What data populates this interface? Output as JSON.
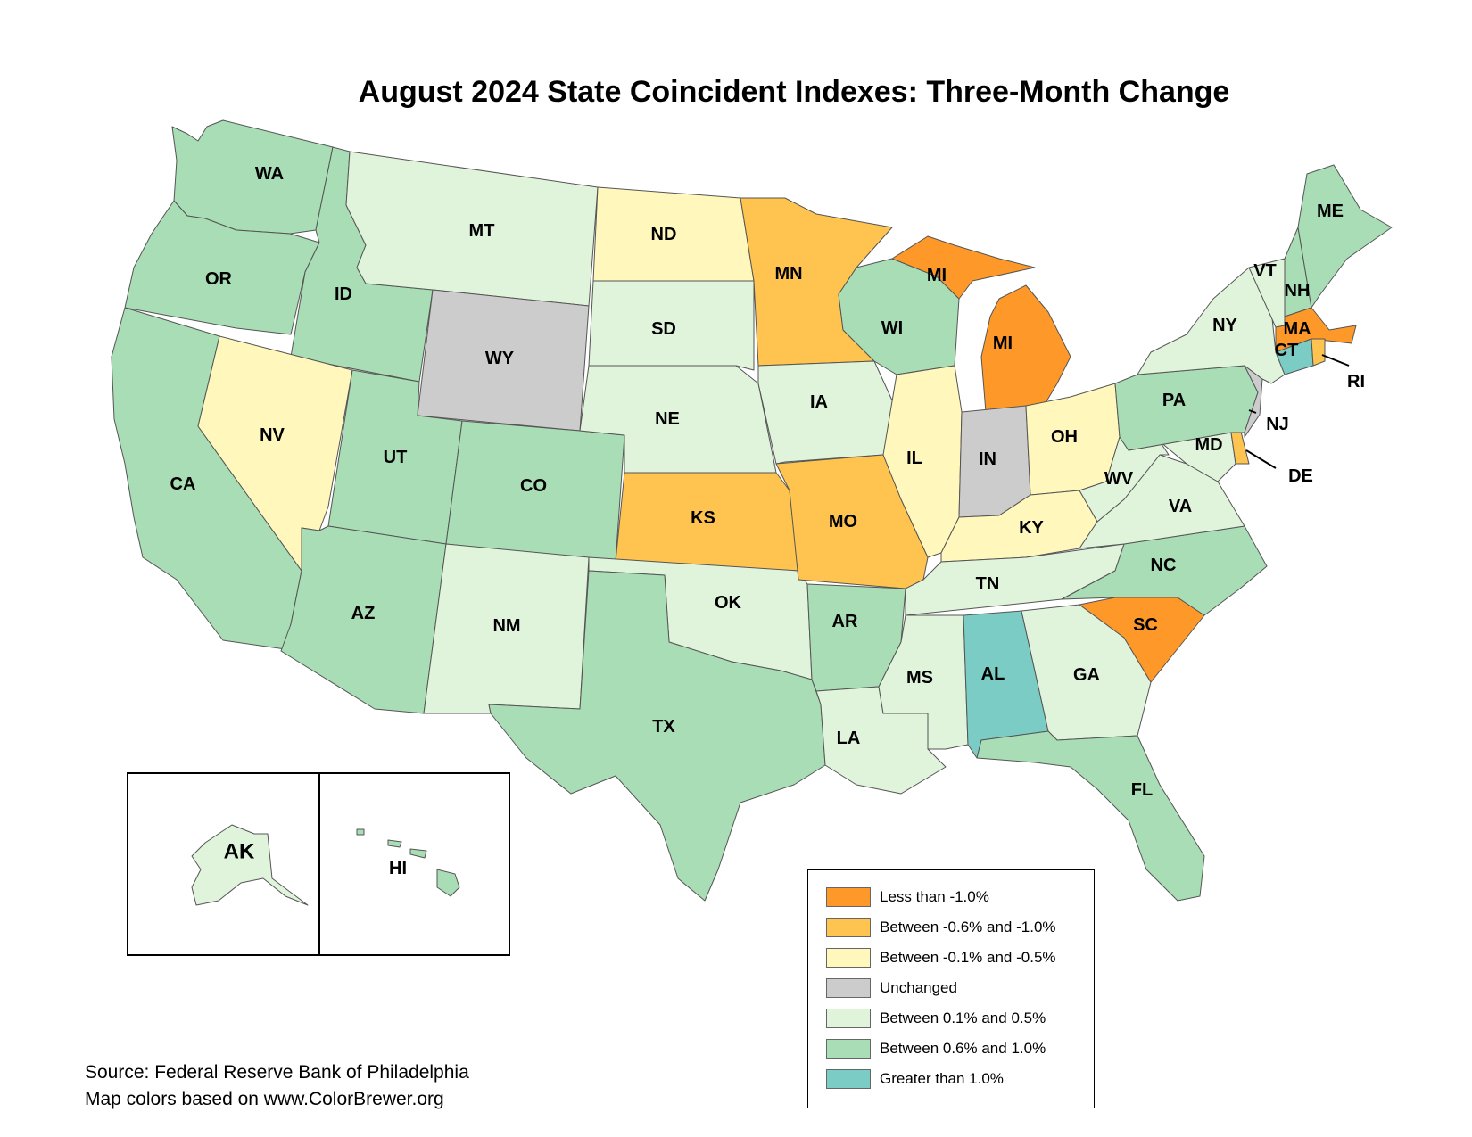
{
  "title": "August 2024 State Coincident Indexes: Three-Month Change",
  "colors": {
    "lt_neg1": "#fe9929",
    "neg06_neg10": "#fec44f",
    "neg01_neg05": "#fff7bc",
    "unchanged": "#cccccc",
    "pos01_pos05": "#e0f3db",
    "pos06_pos10": "#a8ddb5",
    "gt_pos1": "#7bccc4"
  },
  "legend": [
    {
      "key": "lt_neg1",
      "label": "Less than -1.0%"
    },
    {
      "key": "neg06_neg10",
      "label": "Between -0.6% and -1.0%"
    },
    {
      "key": "neg01_neg05",
      "label": "Between -0.1% and -0.5%"
    },
    {
      "key": "unchanged",
      "label": "Unchanged"
    },
    {
      "key": "pos01_pos05",
      "label": "Between 0.1% and 0.5%"
    },
    {
      "key": "pos06_pos10",
      "label": "Between 0.6% and 1.0%"
    },
    {
      "key": "gt_pos1",
      "label": "Greater than 1.0%"
    }
  ],
  "states": {
    "WA": "pos06_pos10",
    "OR": "pos06_pos10",
    "CA": "pos06_pos10",
    "ID": "pos06_pos10",
    "NV": "neg01_neg05",
    "MT": "pos01_pos05",
    "WY": "unchanged",
    "UT": "pos06_pos10",
    "CO": "pos06_pos10",
    "AZ": "pos06_pos10",
    "NM": "pos01_pos05",
    "ND": "neg01_neg05",
    "SD": "pos01_pos05",
    "NE": "pos01_pos05",
    "KS": "neg06_neg10",
    "OK": "pos01_pos05",
    "TX": "pos06_pos10",
    "MN": "neg06_neg10",
    "IA": "pos01_pos05",
    "MO": "neg06_neg10",
    "AR": "pos06_pos10",
    "LA": "pos01_pos05",
    "WI": "pos06_pos10",
    "IL": "neg01_neg05",
    "MI": "lt_neg1",
    "IN": "unchanged",
    "OH": "neg01_neg05",
    "KY": "neg01_neg05",
    "TN": "pos01_pos05",
    "MS": "pos01_pos05",
    "AL": "gt_pos1",
    "GA": "pos01_pos05",
    "FL": "pos06_pos10",
    "SC": "lt_neg1",
    "NC": "pos06_pos10",
    "VA": "pos01_pos05",
    "WV": "pos01_pos05",
    "PA": "pos06_pos10",
    "NY": "pos01_pos05",
    "VT": "pos01_pos05",
    "NH": "pos06_pos10",
    "ME": "pos06_pos10",
    "MA": "lt_neg1",
    "RI": "neg06_neg10",
    "CT": "gt_pos1",
    "NJ": "unchanged",
    "DE": "neg06_neg10",
    "MD": "pos01_pos05",
    "AK": "pos01_pos05",
    "HI": "pos06_pos10"
  },
  "labels": {
    "WA": "WA",
    "OR": "OR",
    "CA": "CA",
    "ID": "ID",
    "NV": "NV",
    "MT": "MT",
    "WY": "WY",
    "UT": "UT",
    "CO": "CO",
    "AZ": "AZ",
    "NM": "NM",
    "ND": "ND",
    "SD": "SD",
    "NE": "NE",
    "KS": "KS",
    "OK": "OK",
    "TX": "TX",
    "MN": "MN",
    "IA": "IA",
    "MO": "MO",
    "AR": "AR",
    "LA": "LA",
    "WI": "WI",
    "IL": "IL",
    "MI_UP": "MI",
    "MI": "MI",
    "IN": "IN",
    "OH": "OH",
    "KY": "KY",
    "TN": "TN",
    "MS": "MS",
    "AL": "AL",
    "GA": "GA",
    "FL": "FL",
    "SC": "SC",
    "NC": "NC",
    "VA": "VA",
    "WV": "WV",
    "PA": "PA",
    "NY": "NY",
    "VT": "VT",
    "NH": "NH",
    "ME": "ME",
    "MA": "MA",
    "CT": "CT",
    "RI": "RI",
    "NJ": "NJ",
    "DE": "DE",
    "MD": "MD",
    "AK": "AK",
    "HI": "HI"
  },
  "source_line1": "Source: Federal Reserve Bank of Philadelphia",
  "source_line2": "Map colors based on www.ColorBrewer.org"
}
